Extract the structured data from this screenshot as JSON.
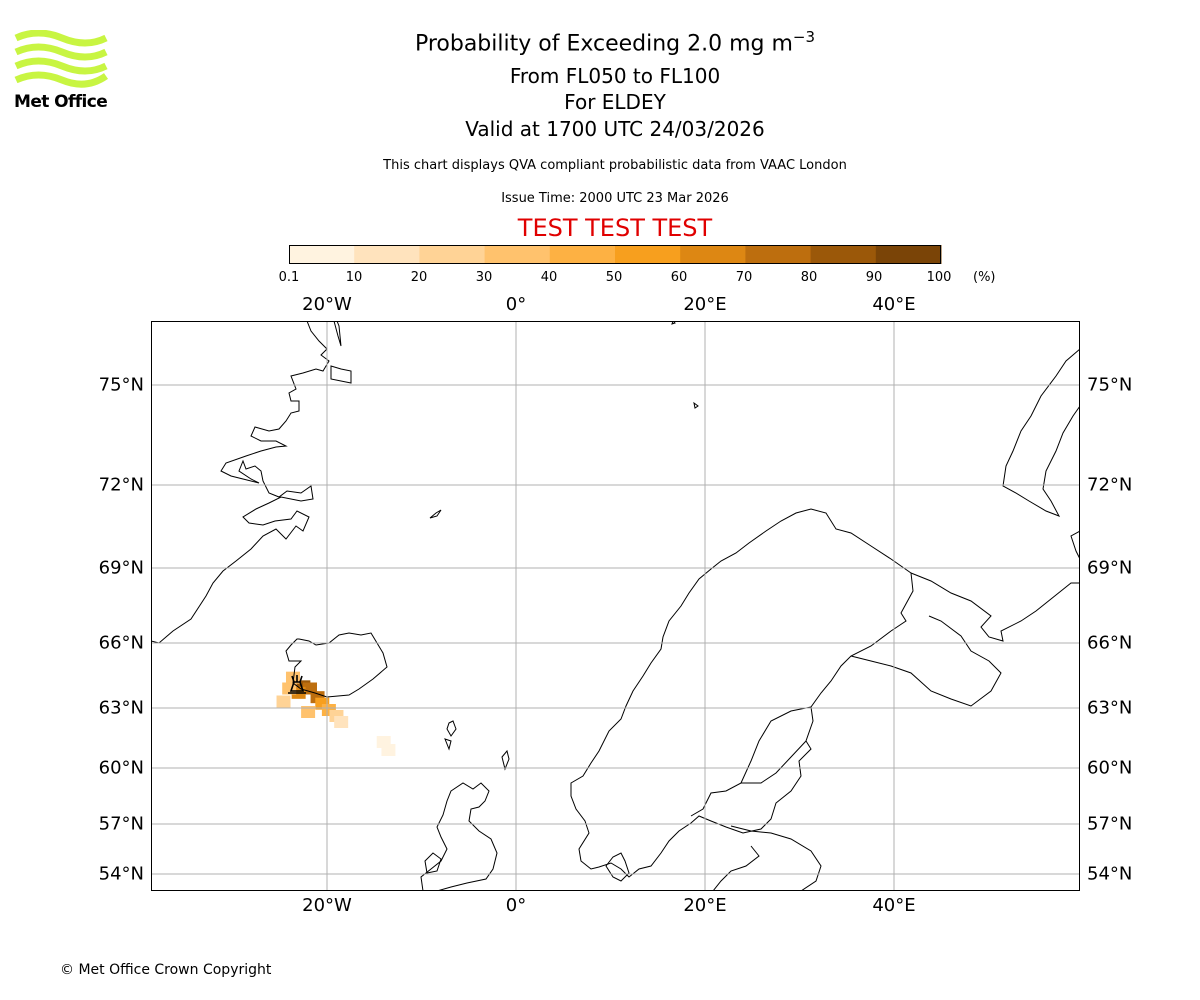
{
  "logo": {
    "brand": "Met Office",
    "color": "#c8f542"
  },
  "header": {
    "title_prefix": "Probability of Exceeding 2.0 mg m",
    "title_exponent": "−3",
    "levels": "From FL050 to FL100",
    "location": "For ELDEY",
    "valid": "Valid at 1700 UTC 24/03/2026",
    "description": "This chart displays QVA compliant probabilistic data from VAAC London",
    "issue_time": "Issue Time: 2000 UTC 23 Mar 2026",
    "test_banner": "TEST TEST TEST",
    "test_color": "#e00000"
  },
  "colorbar": {
    "ticks": [
      "0.1",
      "10",
      "20",
      "30",
      "40",
      "50",
      "60",
      "70",
      "80",
      "90",
      "100"
    ],
    "unit": "(%)",
    "colors": [
      "#fff3e0",
      "#ffe3bd",
      "#ffd396",
      "#ffc26d",
      "#fdb143",
      "#f79f1e",
      "#dd8713",
      "#bd6e0e",
      "#9b5809",
      "#7a4407"
    ]
  },
  "map": {
    "lon_labels_top": [
      "20°W",
      "0°",
      "20°E",
      "40°E"
    ],
    "lon_labels_bottom": [
      "20°W",
      "0°",
      "20°E",
      "40°E"
    ],
    "lat_labels": [
      "75°N",
      "72°N",
      "69°N",
      "66°N",
      "63°N",
      "60°N",
      "57°N",
      "54°N"
    ],
    "plume_cells": [
      {
        "lon": -22.5,
        "lat": 64.0,
        "prob": 85
      },
      {
        "lon": -21.8,
        "lat": 63.9,
        "prob": 75
      },
      {
        "lon": -23.0,
        "lat": 63.7,
        "prob": 65
      },
      {
        "lon": -21.0,
        "lat": 63.5,
        "prob": 70
      },
      {
        "lon": -20.5,
        "lat": 63.2,
        "prob": 55
      },
      {
        "lon": -19.8,
        "lat": 62.9,
        "prob": 45
      },
      {
        "lon": -24.0,
        "lat": 63.9,
        "prob": 35
      },
      {
        "lon": -23.6,
        "lat": 64.4,
        "prob": 30
      },
      {
        "lon": -19.0,
        "lat": 62.6,
        "prob": 25
      },
      {
        "lon": -24.6,
        "lat": 63.3,
        "prob": 20
      },
      {
        "lon": -22.0,
        "lat": 62.8,
        "prob": 30
      },
      {
        "lon": -18.5,
        "lat": 62.3,
        "prob": 15
      },
      {
        "lon": -14.0,
        "lat": 61.3,
        "prob": 8
      },
      {
        "lon": -13.5,
        "lat": 60.9,
        "prob": 5
      }
    ]
  },
  "footer": {
    "copyright": "© Met Office Crown Copyright"
  }
}
